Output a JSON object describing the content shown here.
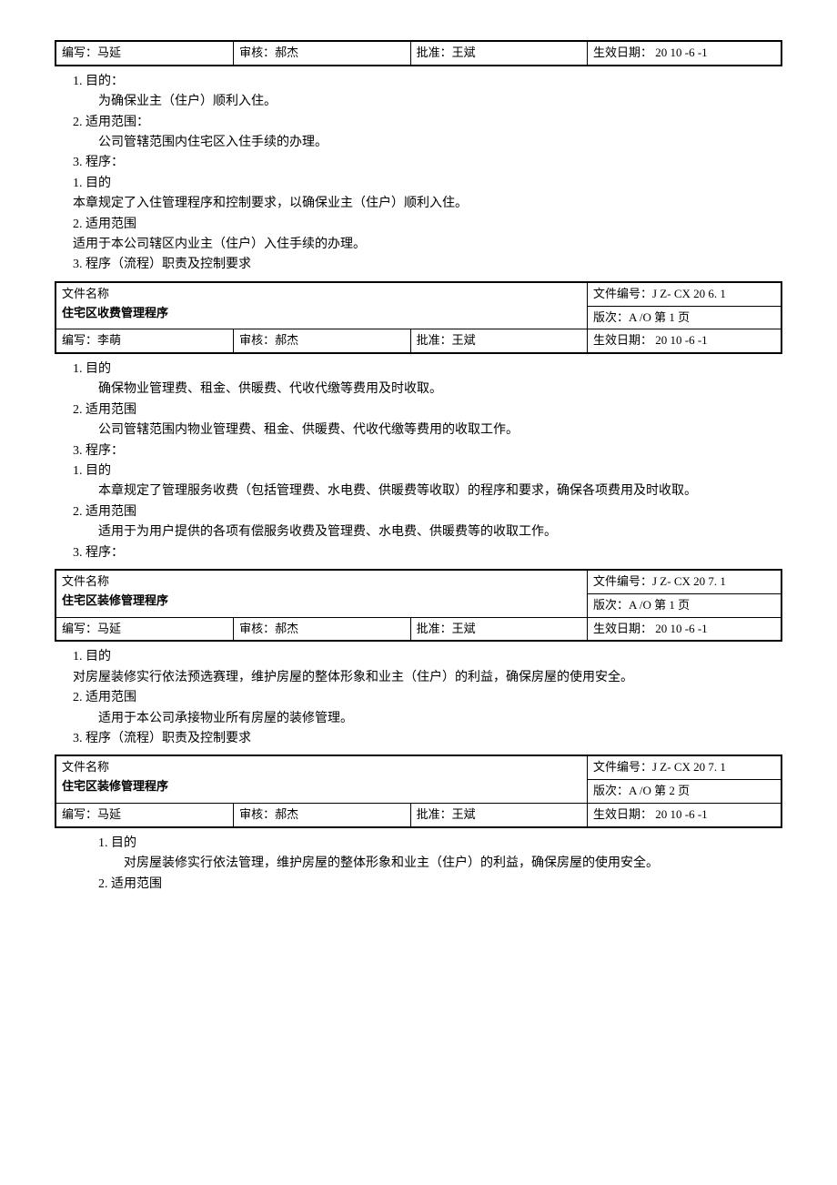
{
  "tables": [
    {
      "writer": "编写：马延",
      "reviewer": "审核：郝杰",
      "approver": "批准：王斌",
      "effective": "生效日期： 20  10 -6 -1"
    },
    {
      "docname_label": "文件名称",
      "docname": "住宅区收费管理程序",
      "docno": "文件编号：J Z- CX  20 6. 1",
      "version": "版次：A /O      第 1 页",
      "writer": "编写：李萌",
      "reviewer": "审核：郝杰",
      "approver": "批准：王斌",
      "effective": "生效日期： 20  10 -6 -1"
    },
    {
      "docname_label": "文件名称",
      "docname": "住宅区装修管理程序",
      "docno": "文件编号：J Z- CX  20 7. 1",
      "version": "版次：A /O      第 1 页",
      "writer": "编写：马延",
      "reviewer": "审核：郝杰",
      "approver": "批准：王斌",
      "effective": "生效日期： 20  10 -6 -1"
    },
    {
      "docname_label": "文件名称",
      "docname": "住宅区装修管理程序",
      "docno": "文件编号：J Z- CX  20 7. 1",
      "version": "版次：A /O      第 2 页",
      "writer": "编写：马延",
      "reviewer": "审核：郝杰",
      "approver": "批准：王斌",
      "effective": "生效日期： 20  10 -6 -1"
    }
  ],
  "blocks": [
    [
      {
        "t": "1.   目的：",
        "i": 1
      },
      {
        "t": "为确保业主（住户）顺利入住。",
        "i": 2
      },
      {
        "t": "2.   适用范围：",
        "i": 1
      },
      {
        "t": "公司管辖范围内住宅区入住手续的办理。",
        "i": 2
      },
      {
        "t": "3.   程序：",
        "i": 1
      },
      {
        "t": "1.   目的",
        "i": 1
      },
      {
        "t": "本章规定了入住管理程序和控制要求，以确保业主（住户）顺利入住。",
        "i": 1
      },
      {
        "t": "2.   适用范围",
        "i": 1
      },
      {
        "t": "适用于本公司辖区内业主（住户）入住手续的办理。",
        "i": 1
      },
      {
        "t": "3.   程序（流程）职责及控制要求",
        "i": 1
      }
    ],
    [
      {
        "t": "1.   目的",
        "i": 1
      },
      {
        "t": "确保物业管理费、租金、供暖费、代收代缴等费用及时收取。",
        "i": 2
      },
      {
        "t": "2.   适用范围",
        "i": 1
      },
      {
        "t": "公司管辖范围内物业管理费、租金、供暖费、代收代缴等费用的收取工作。",
        "i": 2
      },
      {
        "t": "3.   程序：",
        "i": 1
      },
      {
        "t": "1.   目的",
        "i": 1
      },
      {
        "t": "本章规定了管理服务收费（包括管理费、水电费、供暖费等收取）的程序和要求，确保各项费用及时收取。",
        "i": 2
      },
      {
        "t": "2.   适用范围",
        "i": 1
      },
      {
        "t": "适用于为用户提供的各项有偿服务收费及管理费、水电费、供暖费等的收取工作。",
        "i": 2
      },
      {
        "t": "3.   程序：",
        "i": 1
      }
    ],
    [
      {
        "t": "1. 目的",
        "i": 1
      },
      {
        "t": "  对房屋装修实行依法预选赛理，维护房屋的整体形象和业主（住户）的利益，确保房屋的使用安全。",
        "i": 1
      },
      {
        "t": "2. 适用范围",
        "i": 1
      },
      {
        "t": "适用于本公司承接物业所有房屋的装修管理。",
        "i": 2
      },
      {
        "t": "3. 程序（流程）职责及控制要求",
        "i": 1
      }
    ],
    [
      {
        "t": "1.   目的",
        "i": 2
      },
      {
        "t": "对房屋装修实行依法管理，维护房屋的整体形象和业主（住户）的利益，确保房屋的使用安全。",
        "i": 3
      },
      {
        "t": "2.   适用范围",
        "i": 2
      }
    ]
  ]
}
